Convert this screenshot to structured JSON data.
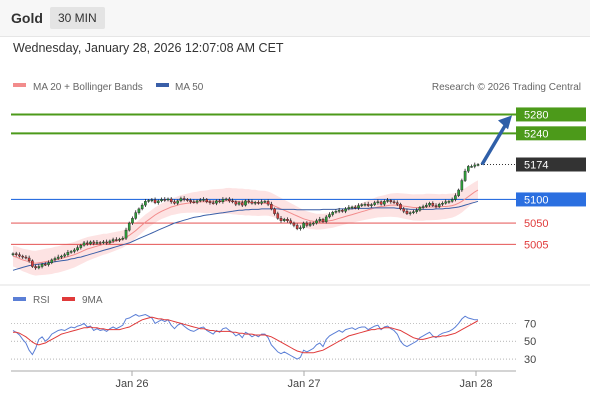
{
  "header": {
    "title": "Gold",
    "timeframe": "30 MIN"
  },
  "date_line": "Wednesday, January 28, 2026 12:07:08 AM CET",
  "legend": {
    "ma20": "MA 20 + Bollinger Bands",
    "ma50": "MA 50",
    "credit": "Research © 2026 Trading Central"
  },
  "rsi_legend": {
    "rsi": "RSI",
    "ma9": "9MA"
  },
  "colors": {
    "green": "#4c9a1a",
    "blue": "#2b6fe0",
    "red": "#e03a3a",
    "dark": "#333333",
    "band": "#fcd9d9",
    "ma20": "#f28c8c",
    "ma50": "#3a5fa8",
    "rsi": "#5b7fd6"
  },
  "chart_data": {
    "type": "candlestick",
    "yrange": [
      4940,
      5300
    ],
    "x_ticks": [
      "Jan 26",
      "Jan 27",
      "Jan 28"
    ],
    "levels": [
      {
        "label": "5280",
        "value": 5280,
        "kind": "resistance"
      },
      {
        "label": "5240",
        "value": 5240,
        "kind": "resistance"
      },
      {
        "label": "5174",
        "value": 5174,
        "kind": "last"
      },
      {
        "label": "5100",
        "value": 5100,
        "kind": "pivot"
      },
      {
        "label": "5050",
        "value": 5050,
        "kind": "support"
      },
      {
        "label": "5005",
        "value": 5005,
        "kind": "support"
      }
    ],
    "closes": [
      4985,
      4983,
      4980,
      4978,
      4976,
      4970,
      4958,
      4955,
      4958,
      4963,
      4962,
      4966,
      4972,
      4975,
      4978,
      4980,
      4983,
      4988,
      4990,
      4993,
      4998,
      5003,
      5008,
      5006,
      5010,
      5007,
      5009,
      5008,
      5010,
      5008,
      5012,
      5015,
      5014,
      5016,
      5018,
      5035,
      5050,
      5060,
      5072,
      5080,
      5088,
      5096,
      5098,
      5099,
      5093,
      5097,
      5100,
      5099,
      5101,
      5095,
      5092,
      5097,
      5102,
      5100,
      5098,
      5095,
      5094,
      5097,
      5099,
      5100,
      5095,
      5093,
      5092,
      5097,
      5095,
      5100,
      5101,
      5097,
      5095,
      5090,
      5093,
      5088,
      5097,
      5095,
      5092,
      5094,
      5092,
      5095,
      5096,
      5090,
      5080,
      5070,
      5060,
      5055,
      5058,
      5055,
      5050,
      5045,
      5038,
      5040,
      5050,
      5045,
      5048,
      5050,
      5055,
      5058,
      5053,
      5063,
      5068,
      5073,
      5075,
      5077,
      5075,
      5080,
      5083,
      5084,
      5082,
      5087,
      5089,
      5090,
      5087,
      5089,
      5093,
      5095,
      5090,
      5096,
      5098,
      5095,
      5093,
      5090,
      5080,
      5075,
      5070,
      5072,
      5074,
      5077,
      5083,
      5085,
      5088,
      5092,
      5087,
      5085,
      5090,
      5092,
      5095,
      5096,
      5100,
      5108,
      5120,
      5140,
      5160,
      5170,
      5170,
      5173,
      5174
    ],
    "ma20": [
      4980,
      4978,
      4975,
      4972,
      4970,
      4968,
      4966,
      4965,
      4966,
      4967,
      4968,
      4969,
      4970,
      4972,
      4973,
      4975,
      4977,
      4979,
      4981,
      4983,
      4986,
      4989,
      4992,
      4995,
      4997,
      4999,
      5001,
      5003,
      5005,
      5006,
      5008,
      5010,
      5012,
      5014,
      5016,
      5020,
      5024,
      5029,
      5034,
      5040,
      5046,
      5052,
      5057,
      5062,
      5067,
      5071,
      5075,
      5078,
      5081,
      5084,
      5086,
      5088,
      5090,
      5091,
      5092,
      5093,
      5094,
      5094,
      5095,
      5095,
      5095,
      5096,
      5096,
      5096,
      5096,
      5096,
      5097,
      5097,
      5096,
      5096,
      5095,
      5095,
      5094,
      5094,
      5093,
      5093,
      5092,
      5092,
      5092,
      5091,
      5089,
      5086,
      5083,
      5080,
      5077,
      5074,
      5071,
      5068,
      5065,
      5062,
      5059,
      5057,
      5055,
      5054,
      5053,
      5053,
      5053,
      5054,
      5055,
      5056,
      5058,
      5060,
      5062,
      5064,
      5066,
      5068,
      5070,
      5072,
      5074,
      5076,
      5078,
      5080,
      5082,
      5084,
      5085,
      5086,
      5087,
      5088,
      5088,
      5088,
      5087,
      5086,
      5085,
      5084,
      5083,
      5083,
      5083,
      5083,
      5084,
      5084,
      5084,
      5084,
      5084,
      5085,
      5085,
      5086,
      5087,
      5089,
      5092,
      5096,
      5101,
      5106,
      5111,
      5116,
      5120
    ],
    "ma50": [
      4950,
      4952,
      4954,
      4956,
      4958,
      4960,
      4961,
      4962,
      4963,
      4964,
      4965,
      4966,
      4967,
      4968,
      4969,
      4970,
      4971,
      4972,
      4974,
      4975,
      4977,
      4978,
      4980,
      4982,
      4984,
      4986,
      4988,
      4990,
      4992,
      4994,
      4996,
      4998,
      5000,
      5002,
      5004,
      5006,
      5008,
      5011,
      5014,
      5017,
      5020,
      5023,
      5026,
      5029,
      5032,
      5035,
      5038,
      5041,
      5044,
      5047,
      5050,
      5052,
      5054,
      5056,
      5058,
      5060,
      5062,
      5063,
      5064,
      5066,
      5067,
      5068,
      5069,
      5070,
      5071,
      5072,
      5073,
      5074,
      5075,
      5076,
      5077,
      5077,
      5078,
      5078,
      5079,
      5079,
      5079,
      5080,
      5080,
      5080,
      5080,
      5080,
      5080,
      5079,
      5079,
      5079,
      5079,
      5079,
      5078,
      5078,
      5078,
      5078,
      5078,
      5078,
      5078,
      5078,
      5079,
      5079,
      5079,
      5079,
      5079,
      5080,
      5080,
      5080,
      5080,
      5080,
      5081,
      5081,
      5081,
      5081,
      5081,
      5082,
      5082,
      5082,
      5082,
      5082,
      5082,
      5082,
      5082,
      5081,
      5081,
      5080,
      5080,
      5079,
      5079,
      5079,
      5079,
      5079,
      5079,
      5079,
      5079,
      5080,
      5080,
      5080,
      5081,
      5081,
      5082,
      5083,
      5084,
      5086,
      5088,
      5090,
      5092,
      5094,
      5096
    ],
    "rsi": {
      "ticks": [
        70,
        50,
        30
      ],
      "yrange": [
        20,
        85
      ],
      "rsi": [
        62,
        60,
        57,
        52,
        48,
        40,
        35,
        42,
        52,
        55,
        50,
        53,
        58,
        60,
        62,
        63,
        62,
        64,
        66,
        65,
        67,
        68,
        70,
        66,
        67,
        62,
        64,
        62,
        63,
        61,
        64,
        66,
        64,
        66,
        68,
        75,
        76,
        78,
        80,
        78,
        79,
        80,
        78,
        76,
        70,
        72,
        74,
        72,
        74,
        68,
        64,
        68,
        70,
        67,
        64,
        62,
        61,
        63,
        65,
        66,
        62,
        60,
        58,
        62,
        60,
        64,
        65,
        62,
        60,
        56,
        58,
        54,
        60,
        58,
        55,
        57,
        55,
        58,
        58,
        54,
        46,
        42,
        38,
        36,
        38,
        36,
        34,
        32,
        30,
        32,
        40,
        38,
        40,
        42,
        46,
        48,
        44,
        52,
        56,
        58,
        60,
        62,
        60,
        63,
        64,
        65,
        63,
        65,
        66,
        66,
        63,
        65,
        67,
        68,
        63,
        66,
        67,
        64,
        62,
        58,
        50,
        46,
        44,
        46,
        48,
        50,
        54,
        56,
        58,
        60,
        56,
        54,
        57,
        59,
        60,
        61,
        63,
        66,
        70,
        75,
        78,
        76,
        75,
        74,
        74
      ],
      "ma9": [
        60,
        60,
        59,
        57,
        55,
        52,
        49,
        47,
        46,
        47,
        48,
        50,
        52,
        54,
        56,
        58,
        59,
        60,
        61,
        62,
        63,
        64,
        65,
        65,
        66,
        65,
        65,
        64,
        64,
        63,
        63,
        63,
        63,
        63,
        64,
        65,
        66,
        68,
        70,
        72,
        74,
        75,
        76,
        77,
        76,
        75,
        75,
        74,
        74,
        73,
        72,
        71,
        70,
        69,
        68,
        67,
        66,
        65,
        64,
        64,
        63,
        62,
        62,
        61,
        61,
        61,
        61,
        61,
        60,
        60,
        59,
        59,
        58,
        58,
        58,
        57,
        57,
        57,
        57,
        56,
        55,
        53,
        51,
        49,
        47,
        45,
        43,
        41,
        39,
        38,
        37,
        37,
        37,
        37,
        38,
        39,
        40,
        42,
        44,
        46,
        48,
        50,
        52,
        54,
        56,
        57,
        58,
        59,
        60,
        61,
        62,
        63,
        63,
        64,
        64,
        65,
        65,
        65,
        64,
        63,
        62,
        60,
        58,
        56,
        54,
        53,
        52,
        52,
        53,
        54,
        55,
        55,
        55,
        56,
        56,
        57,
        58,
        59,
        61,
        63,
        65,
        67,
        69,
        71,
        73
      ]
    }
  }
}
